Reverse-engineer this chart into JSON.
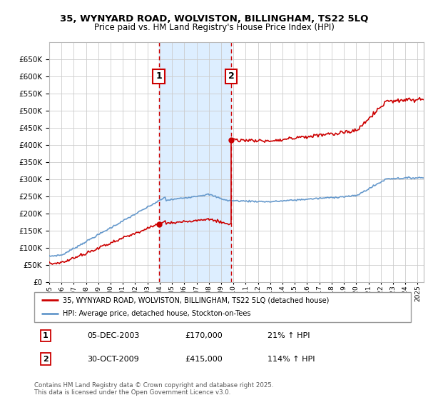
{
  "title_line1": "35, WYNYARD ROAD, WOLVISTON, BILLINGHAM, TS22 5LQ",
  "title_line2": "Price paid vs. HM Land Registry's House Price Index (HPI)",
  "background_color": "#ffffff",
  "plot_bg_color": "#ffffff",
  "grid_color": "#cccccc",
  "hpi_line_color": "#6699cc",
  "price_line_color": "#cc0000",
  "shade_color": "#ddeeff",
  "x1_year": 2003.92,
  "x2_year": 2009.83,
  "price1": 170000,
  "price2": 415000,
  "ymin": 0,
  "ymax": 700000,
  "yticks": [
    0,
    50000,
    100000,
    150000,
    200000,
    250000,
    300000,
    350000,
    400000,
    450000,
    500000,
    550000,
    600000,
    650000
  ],
  "xmin": 1995.0,
  "xmax": 2025.5,
  "legend_label1": "35, WYNYARD ROAD, WOLVISTON, BILLINGHAM, TS22 5LQ (detached house)",
  "legend_label2": "HPI: Average price, detached house, Stockton-on-Tees",
  "footnote": "Contains HM Land Registry data © Crown copyright and database right 2025.\nThis data is licensed under the Open Government Licence v3.0.",
  "table_row1": [
    "1",
    "05-DEC-2003",
    "£170,000",
    "21% ↑ HPI"
  ],
  "table_row2": [
    "2",
    "30-OCT-2009",
    "£415,000",
    "114% ↑ HPI"
  ]
}
